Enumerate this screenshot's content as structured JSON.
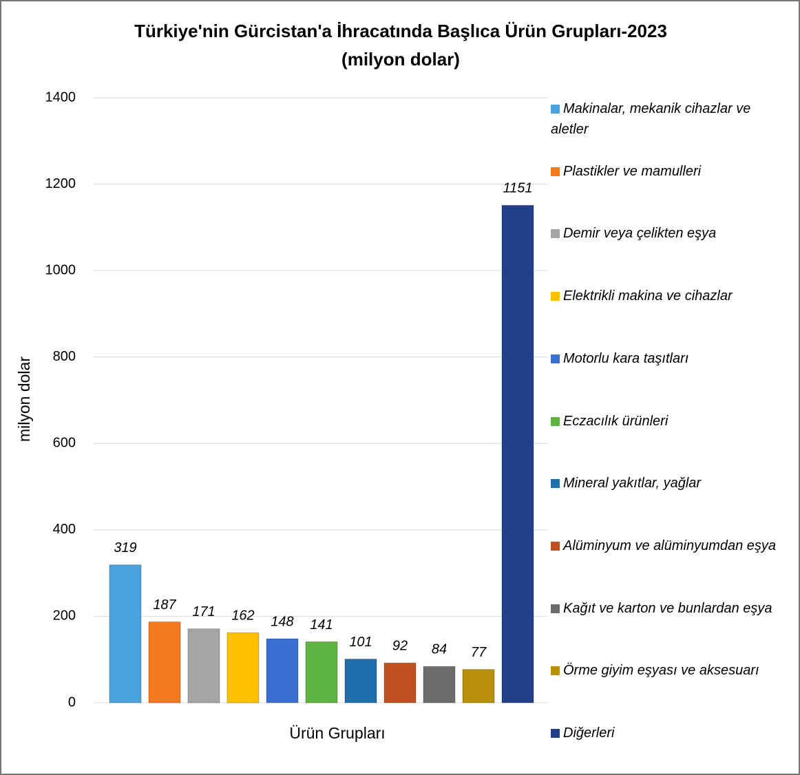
{
  "chart_data": {
    "type": "bar",
    "title": "Türkiye'nin Gürcistan'a İhracatında Başlıca Ürün Grupları-2023",
    "subtitle": "(milyon dolar)",
    "x_label": "Ürün Grupları",
    "y_label": "milyon dolar",
    "categories": [
      "Makinalar, mekanik cihazlar ve aletler",
      "Plastikler ve mamulleri",
      "Demir veya çelikten eşya",
      "Elektrikli makina ve cihazlar",
      "Motorlu kara taşıtları",
      "Eczacılık ürünleri",
      "Mineral yakıtlar, yağlar",
      "Alüminyum ve alüminyumdan eşya",
      "Kağıt ve karton ve bunlardan eşya",
      "Örme giyim eşyası ve aksesuarı",
      "Diğerleri"
    ],
    "values": [
      319,
      187,
      171,
      162,
      148,
      141,
      101,
      92,
      84,
      77,
      1151
    ],
    "colors": [
      "#4aa3df",
      "#f47a20",
      "#a5a5a5",
      "#ffc000",
      "#3a6fd1",
      "#5fb342",
      "#1f6fad",
      "#c0501f",
      "#6d6d6d",
      "#b8900c",
      "#233e8b"
    ],
    "ylim": [
      0,
      1400
    ],
    "yticks": [
      0,
      200,
      400,
      600,
      800,
      1000,
      1200,
      1400
    ],
    "grid": true,
    "legend": "right"
  }
}
